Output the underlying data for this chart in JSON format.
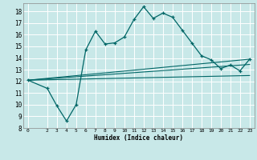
{
  "title": "",
  "xlabel": "Humidex (Indice chaleur)",
  "ylabel": "",
  "bg_color": "#c8e8e8",
  "grid_color": "#ffffff",
  "line_color": "#006666",
  "xlim": [
    -0.5,
    23.5
  ],
  "ylim": [
    8,
    18.7
  ],
  "yticks": [
    8,
    9,
    10,
    11,
    12,
    13,
    14,
    15,
    16,
    17,
    18
  ],
  "xticks": [
    0,
    2,
    3,
    4,
    5,
    6,
    7,
    8,
    9,
    10,
    11,
    12,
    13,
    14,
    15,
    16,
    17,
    18,
    19,
    20,
    21,
    22,
    23
  ],
  "main_line_x": [
    0,
    2,
    3,
    4,
    5,
    6,
    7,
    8,
    9,
    10,
    11,
    12,
    13,
    14,
    15,
    16,
    17,
    18,
    19,
    20,
    21,
    22,
    23
  ],
  "main_line_y": [
    12.1,
    11.4,
    9.9,
    8.6,
    10.0,
    14.7,
    16.3,
    15.2,
    15.3,
    15.8,
    17.3,
    18.4,
    17.4,
    17.85,
    17.5,
    16.4,
    15.3,
    14.2,
    13.85,
    13.1,
    13.4,
    12.9,
    13.9
  ],
  "line2_x": [
    0,
    23
  ],
  "line2_y": [
    12.1,
    13.9
  ],
  "line3_x": [
    0,
    23
  ],
  "line3_y": [
    12.1,
    13.45
  ],
  "line4_x": [
    0,
    23
  ],
  "line4_y": [
    12.1,
    12.5
  ]
}
